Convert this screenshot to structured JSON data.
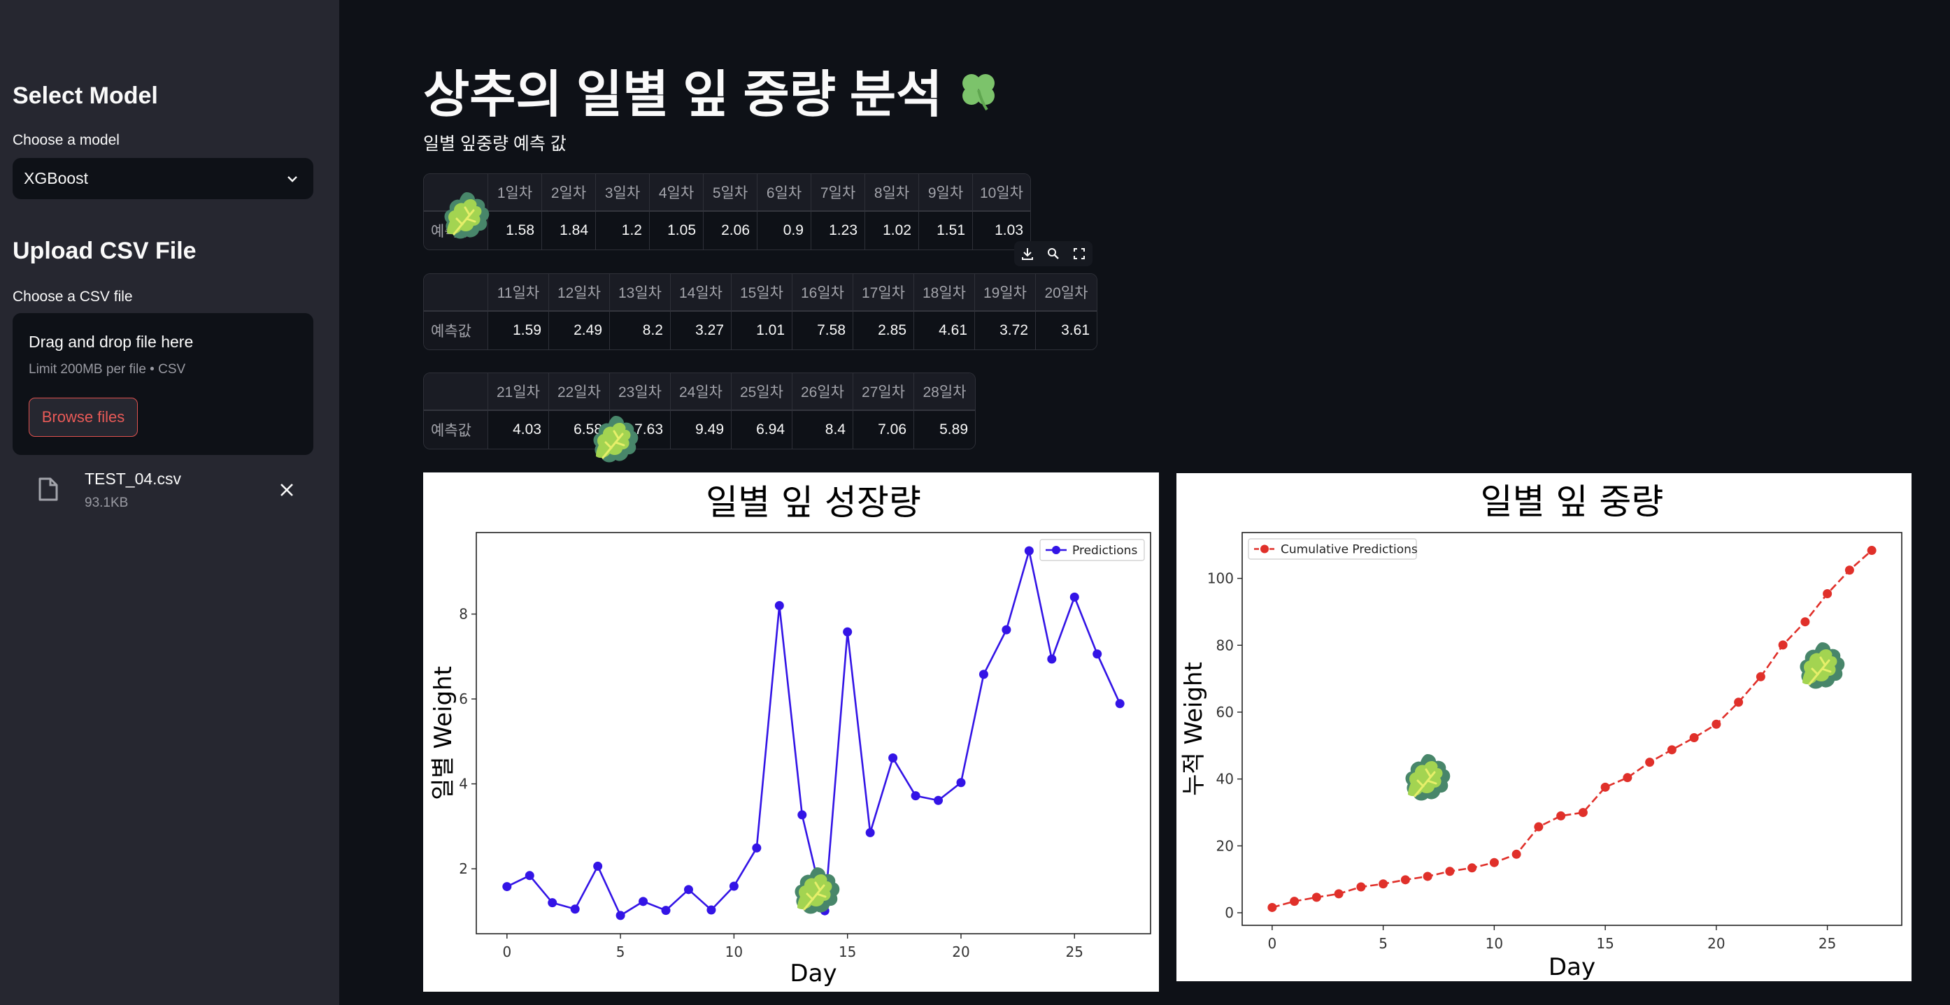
{
  "sidebar": {
    "select_model_heading": "Select Model",
    "choose_model_label": "Choose a model",
    "model_selected": "XGBoost",
    "upload_heading": "Upload CSV File",
    "choose_file_label": "Choose a CSV file",
    "dropzone_title": "Drag and drop file here",
    "dropzone_limit": "Limit 200MB per file • CSV",
    "browse_label": "Browse files",
    "file": {
      "name": "TEST_04.csv",
      "size": "93.1KB"
    }
  },
  "main": {
    "title": "상추의 일별 잎 중량 분석",
    "title_emoji": "☘️",
    "subtitle": "일별 잎중량 예측 값",
    "tables": [
      {
        "headers": [
          "1일차",
          "2일차",
          "3일차",
          "4일차",
          "5일차",
          "6일차",
          "7일차",
          "8일차",
          "9일차",
          "10일차"
        ],
        "row_label": "예측값",
        "values": [
          "1.58",
          "1.84",
          "1.2",
          "1.05",
          "2.06",
          "0.9",
          "1.23",
          "1.02",
          "1.51",
          "1.03"
        ]
      },
      {
        "headers": [
          "11일차",
          "12일차",
          "13일차",
          "14일차",
          "15일차",
          "16일차",
          "17일차",
          "18일차",
          "19일차",
          "20일차"
        ],
        "row_label": "예측값",
        "values": [
          "1.59",
          "2.49",
          "8.2",
          "3.27",
          "1.01",
          "7.58",
          "2.85",
          "4.61",
          "3.72",
          "3.61"
        ]
      },
      {
        "headers": [
          "21일차",
          "22일차",
          "23일차",
          "24일차",
          "25일차",
          "26일차",
          "27일차",
          "28일차"
        ],
        "row_label": "예측값",
        "values": [
          "4.03",
          "6.58",
          "7.63",
          "9.49",
          "6.94",
          "8.4",
          "7.06",
          "5.89"
        ]
      }
    ],
    "toolbar_icons": [
      "download-icon",
      "search-icon",
      "fullscreen-icon"
    ],
    "decorations": [
      "lettuce-emoji"
    ]
  },
  "chart_data": [
    {
      "type": "line",
      "title": "일별 잎 성장량",
      "xlabel": "Day",
      "ylabel": "일별 Weight",
      "x": [
        0,
        1,
        2,
        3,
        4,
        5,
        6,
        7,
        8,
        9,
        10,
        11,
        12,
        13,
        14,
        15,
        16,
        17,
        18,
        19,
        20,
        21,
        22,
        23,
        24,
        25,
        26,
        27
      ],
      "series": [
        {
          "name": "Predictions",
          "color": "#3314e6",
          "style": "solid",
          "marker": "circle",
          "values": [
            1.58,
            1.84,
            1.2,
            1.05,
            2.06,
            0.9,
            1.23,
            1.02,
            1.51,
            1.03,
            1.59,
            2.49,
            8.2,
            3.27,
            1.01,
            7.58,
            2.85,
            4.61,
            3.72,
            3.61,
            4.03,
            6.58,
            7.63,
            9.49,
            6.94,
            8.4,
            7.06,
            5.89
          ]
        }
      ],
      "xlim": [
        -1.35,
        28.35
      ],
      "ylim": [
        0.47,
        9.92
      ],
      "xticks": [
        0,
        5,
        10,
        15,
        20,
        25
      ],
      "yticks": [
        2,
        4,
        6,
        8
      ],
      "grid": false,
      "legend": "top-right"
    },
    {
      "type": "line",
      "title": "일별 잎 중량",
      "xlabel": "Day",
      "ylabel": "누적 Weight",
      "x": [
        0,
        1,
        2,
        3,
        4,
        5,
        6,
        7,
        8,
        9,
        10,
        11,
        12,
        13,
        14,
        15,
        16,
        17,
        18,
        19,
        20,
        21,
        22,
        23,
        24,
        25,
        26,
        27
      ],
      "series": [
        {
          "name": "Cumulative Predictions",
          "color": "#e0302a",
          "style": "dashed",
          "marker": "circle",
          "values": [
            1.58,
            3.42,
            4.62,
            5.67,
            7.73,
            8.63,
            9.86,
            10.88,
            12.39,
            13.42,
            15.01,
            17.5,
            25.7,
            28.97,
            29.98,
            37.56,
            40.41,
            45.02,
            48.74,
            52.35,
            56.38,
            62.96,
            70.59,
            80.08,
            87.02,
            95.42,
            102.48,
            108.37
          ]
        }
      ],
      "xlim": [
        -1.35,
        28.35
      ],
      "ylim": [
        -3.76,
        113.71
      ],
      "xticks": [
        0,
        5,
        10,
        15,
        20,
        25
      ],
      "yticks": [
        0,
        20,
        40,
        60,
        80,
        100
      ],
      "grid": false,
      "legend": "top-left"
    }
  ]
}
